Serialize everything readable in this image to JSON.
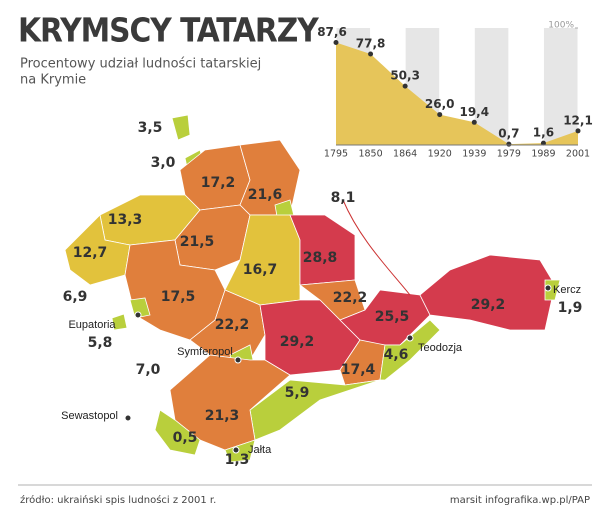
{
  "title": "KRYMSCY TATARZY",
  "subtitle": [
    "Procentowy udział ludności tatarskiej",
    "na Krymie"
  ],
  "chart_data": {
    "type": "area",
    "categories": [
      "1795",
      "1850",
      "1864",
      "1920",
      "1939",
      "1979",
      "1989",
      "2001"
    ],
    "values": [
      87.6,
      77.8,
      50.3,
      26.0,
      19.4,
      0.7,
      1.6,
      12.1
    ],
    "value_labels": [
      "87,6",
      "77,8",
      "50,3",
      "26,0",
      "19,4",
      "0,7",
      "1,6",
      "12,1"
    ],
    "color": "#e6c55a",
    "ylim": [
      0,
      100
    ],
    "yticks": [
      {
        "value": 100,
        "label": "100%"
      }
    ]
  },
  "map": {
    "values": [
      3.5,
      3.0,
      17.2,
      21.6,
      8.1,
      13.3,
      12.7,
      21.5,
      16.7,
      28.8,
      17.5,
      6.9,
      22.2,
      22.2,
      29.2,
      25.5,
      29.2,
      1.9,
      7.0,
      17.4,
      4.6,
      5.9,
      21.3,
      0.5,
      1.3,
      5.8
    ],
    "value_labels": [
      "3,5",
      "3,0",
      "17,2",
      "21,6",
      "8,1",
      "13,3",
      "12,7",
      "21,5",
      "16,7",
      "28,8",
      "17,5",
      "6,9",
      "22,2",
      "22,2",
      "29,2",
      "25,5",
      "29,2",
      "1,9",
      "7,0",
      "17,4",
      "4,6",
      "5,9",
      "21,3",
      "0,5",
      "1,3",
      "5,8"
    ],
    "colors": [
      "#b9cf3c",
      "#b9cf3c",
      "#e07f3c",
      "#e07f3c",
      "#b9cf3c",
      "#e2c23c",
      "#e2c23c",
      "#e07f3c",
      "#e2c23c",
      "#d43b4d",
      "#e07f3c",
      "#b9cf3c",
      "#e07f3c",
      "#e07f3c",
      "#d43b4d",
      "#d43b4d",
      "#d43b4d",
      "#b9cf3c",
      "#b9cf3c",
      "#e07f3c",
      "#b9cf3c",
      "#b9cf3c",
      "#e07f3c",
      "#b9cf3c",
      "#b9cf3c",
      "#b9cf3c"
    ],
    "cities": [
      "Eupatoria",
      "Symferopol",
      "Sewastopol",
      "Jałta",
      "Teodozja",
      "Kercz"
    ]
  },
  "source": "źródło: ukraiński spis ludności z 2001 r.",
  "credit": "marsit infografika.wp.pl/PAP"
}
